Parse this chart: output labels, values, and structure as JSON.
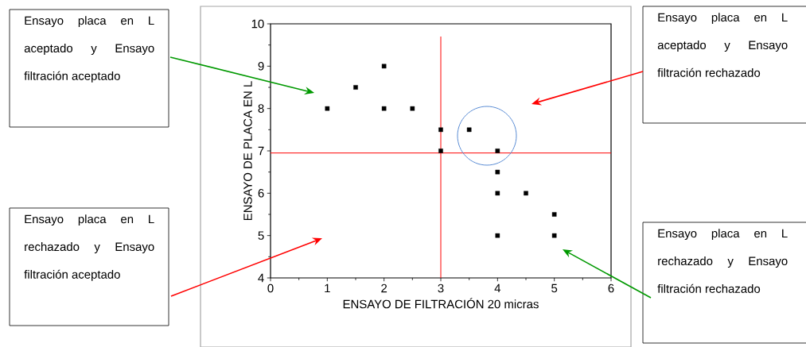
{
  "chart_data": {
    "type": "scatter",
    "xlabel": "ENSAYO DE FILTRACIÓN 20 micras",
    "ylabel": "ENSAYO DE PLACA EN L",
    "x": [
      1,
      1.5,
      2,
      2,
      2.5,
      3,
      3,
      3.5,
      4,
      4,
      4,
      4.5,
      5,
      5,
      4
    ],
    "values": [
      8,
      8.5,
      9,
      8,
      8,
      7.5,
      7,
      7.5,
      7,
      6.5,
      6,
      6,
      5.5,
      5,
      5
    ],
    "color": "#000000",
    "marker": "square",
    "grid": false,
    "xlim": [
      0,
      6
    ],
    "ylim": [
      4,
      10
    ],
    "xticks": [
      0,
      1,
      2,
      3,
      4,
      5,
      6
    ],
    "yticks": [
      4,
      5,
      6,
      7,
      8,
      9,
      10
    ],
    "ref_lines": [
      {
        "axis": "x",
        "value": 3,
        "color": "#ff0000"
      },
      {
        "axis": "y",
        "value": 6.95,
        "color": "#ff0000"
      }
    ],
    "annotations": [
      "Ensayo placa en L aceptado y Ensayo filtración aceptado",
      "Ensayo placa en L aceptado y Ensayo filtración rechazado",
      "Ensayo placa en L rechazado y Ensayo filtración aceptado",
      "Ensayo placa en L rechazado y Ensayo filtración rechazado"
    ]
  }
}
